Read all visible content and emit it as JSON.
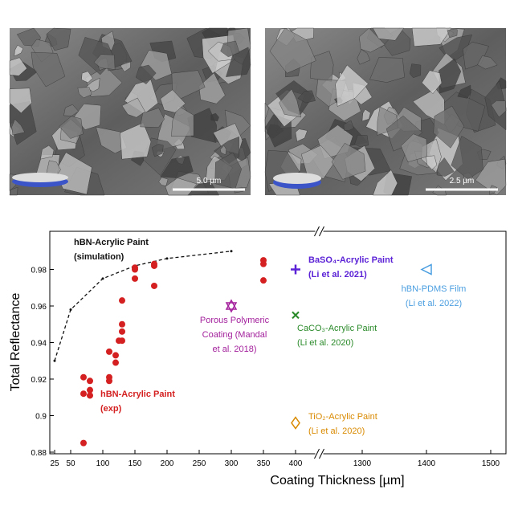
{
  "images": [
    {
      "scale_bar": "5.0 µm"
    },
    {
      "scale_bar": "2.5 µm"
    }
  ],
  "chart_data": {
    "type": "scatter",
    "x_label": "Coating Thickness [µm]",
    "y_label": "Total Reflectance",
    "xlim": [
      20,
      1520
    ],
    "xbreak": [
      420,
      1250
    ],
    "xticks": [
      25,
      50,
      100,
      150,
      200,
      250,
      300,
      350,
      400,
      1300,
      1400,
      1500
    ],
    "ylim": [
      0.88,
      1.0
    ],
    "yticks": [
      0.88,
      0.9,
      0.92,
      0.94,
      0.96,
      0.98
    ],
    "series": [
      {
        "labels": [
          "hBN-Acrylic Paint",
          "(simulation)"
        ],
        "marker": "dashed-line",
        "color": "#111111",
        "x": [
          25,
          50,
          100,
          150,
          200,
          300
        ],
        "values": [
          0.93,
          0.958,
          0.975,
          0.982,
          0.986,
          0.99
        ]
      },
      {
        "labels": [
          "hBN-Acrylic Paint",
          "(exp)"
        ],
        "marker": "circle",
        "color": "#d42020",
        "x": [
          70,
          70,
          70,
          80,
          80,
          80,
          110,
          110,
          110,
          120,
          120,
          125,
          130,
          130,
          130,
          130,
          150,
          150,
          150,
          180,
          180,
          180,
          350,
          350,
          350
        ],
        "values": [
          0.921,
          0.912,
          0.885,
          0.919,
          0.914,
          0.911,
          0.921,
          0.919,
          0.935,
          0.933,
          0.929,
          0.941,
          0.963,
          0.95,
          0.946,
          0.941,
          0.981,
          0.98,
          0.975,
          0.983,
          0.982,
          0.971,
          0.985,
          0.983,
          0.974
        ]
      },
      {
        "labels": [
          "Porous Polymeric",
          "Coating (Mandal",
          "et al. 2018)"
        ],
        "marker": "star",
        "color": "#a3209c",
        "x": [
          300
        ],
        "values": [
          0.96
        ]
      },
      {
        "labels": [
          "BaSO₄-Acrylic Paint",
          "(Li et al. 2021)"
        ],
        "marker": "plus",
        "color": "#5b22d6",
        "x": [
          400
        ],
        "values": [
          0.98
        ]
      },
      {
        "labels": [
          "CaCO₃-Acrylic Paint",
          "(Li et al. 2020)"
        ],
        "marker": "cross",
        "color": "#2a8a2a",
        "x": [
          400
        ],
        "values": [
          0.955
        ]
      },
      {
        "labels": [
          "TiO₂-Acrylic Paint",
          "(Li et al. 2020)"
        ],
        "marker": "diamond",
        "color": "#d98a00",
        "x": [
          400
        ],
        "values": [
          0.896
        ]
      },
      {
        "labels": [
          "hBN-PDMS Film",
          "(Li et al. 2022)"
        ],
        "marker": "triangle-left",
        "color": "#4a9ee0",
        "x": [
          1400
        ],
        "values": [
          0.98
        ]
      }
    ]
  }
}
